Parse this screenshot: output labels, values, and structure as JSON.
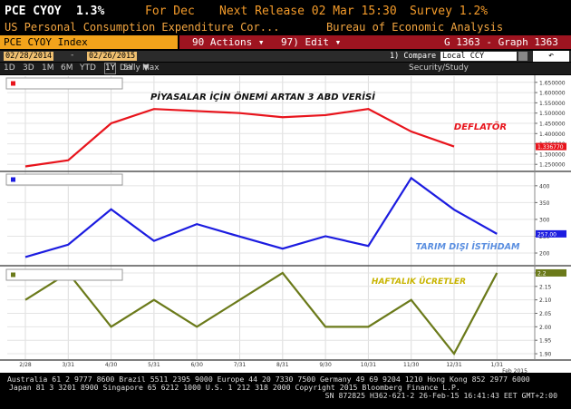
{
  "header": {
    "ticker": "PCE CYOY",
    "value": "1.3%",
    "period": "For Dec",
    "next_release": "Next Release 02 Mar 15:30",
    "survey": "Survey 1.2%",
    "description": "US Personal Consumption Expenditure Cor...",
    "source": "Bureau of Economic Analysis"
  },
  "toolbar": {
    "security": "PCE CYOY Index",
    "actions": "90 Actions ▾",
    "edit": "97) Edit ▾",
    "graph": "G 1363 - Graph 1363",
    "start_date": "02/28/2014",
    "end_date": "02/26/2015",
    "compare": "1) Compare",
    "currency": "Local CCY",
    "periods": [
      "1D",
      "3D",
      "1M",
      "6M",
      "YTD",
      "1Y",
      "5Y",
      "Max"
    ],
    "frequency": "Daily ▼",
    "study": "Security/Study"
  },
  "chart_data": [
    {
      "type": "line",
      "categories": [
        "2/28",
        "3/31",
        "4/30",
        "5/31",
        "6/30",
        "7/31",
        "8/31",
        "9/30",
        "10/31",
        "11/30",
        "12/31",
        "1/31"
      ],
      "series": [
        {
          "color": "#e8141c",
          "values": [
            1.24,
            1.27,
            1.45,
            1.52,
            1.51,
            1.5,
            1.48,
            1.49,
            1.52,
            1.41,
            1.33677,
            null
          ],
          "value_labels": [
            null,
            null,
            null,
            null,
            null,
            null,
            null,
            null,
            null,
            null,
            "1.336770",
            null
          ]
        }
      ],
      "ylim": [
        1.22,
        1.68
      ],
      "yticks": [
        {
          "value": 1.25,
          "label": "1.250000"
        },
        {
          "value": 1.3,
          "label": "1.300000"
        },
        {
          "value": 1.35,
          "label": "1.350000"
        },
        {
          "value": 1.4,
          "label": "1.400000"
        },
        {
          "value": 1.45,
          "label": "1.450000"
        },
        {
          "value": 1.5,
          "label": "1.500000"
        },
        {
          "value": 1.55,
          "label": "1.550000"
        },
        {
          "value": 1.6,
          "label": "1.600000"
        },
        {
          "value": 1.65,
          "label": "1.650000"
        }
      ],
      "annotations": [
        {
          "text": "PİYASALAR İÇİN ÖNEMİ ARTAN 3 ABD VERİSİ",
          "color": "#111111"
        },
        {
          "text": "DEFLATÖR",
          "color": "#e8141c"
        }
      ]
    },
    {
      "type": "line",
      "categories": [
        "2/28",
        "3/31",
        "4/30",
        "5/31",
        "6/30",
        "7/31",
        "8/31",
        "9/30",
        "10/31",
        "11/30",
        "12/31",
        "1/31"
      ],
      "series": [
        {
          "color": "#1c1ce0",
          "values": [
            188,
            225,
            330,
            236,
            286,
            249,
            213,
            250,
            221,
            423,
            329,
            257
          ],
          "value_labels": [
            null,
            null,
            null,
            null,
            null,
            null,
            null,
            null,
            null,
            null,
            null,
            "257.00"
          ]
        }
      ],
      "ylim": [
        165,
        440
      ],
      "yticks": [
        200,
        250,
        300,
        350,
        400
      ],
      "annotations": [
        {
          "text": "TARIM DIŞI İSTİHDAM",
          "color": "#5b8fe0"
        }
      ]
    },
    {
      "type": "line",
      "categories": [
        "2/28",
        "3/31",
        "4/30",
        "5/31",
        "6/30",
        "7/31",
        "8/31",
        "9/30",
        "10/31",
        "11/30",
        "12/31",
        "1/31"
      ],
      "series": [
        {
          "color": "#6b7a1a",
          "values": [
            2.1,
            2.2,
            2.0,
            2.1,
            2.0,
            2.1,
            2.2,
            2.0,
            2.0,
            2.1,
            1.9,
            2.2
          ]
        }
      ],
      "ylim": [
        1.88,
        2.22
      ],
      "yticks": [
        {
          "value": 1.9,
          "label": "1.90"
        },
        {
          "value": 1.95,
          "label": "1.95"
        },
        {
          "value": 2.0,
          "label": "2.00"
        },
        {
          "value": 2.05,
          "label": "2.05"
        },
        {
          "value": 2.1,
          "label": "2.10"
        },
        {
          "value": 2.15,
          "label": "2.15"
        },
        2.2
      ],
      "annotations": [
        {
          "text": "HAFTALIK ÜCRETLER",
          "color": "#c8b400"
        }
      ],
      "xlabel": "Feb 2015"
    }
  ],
  "footer": {
    "lines": [
      "Australia 61 2 9777 8600 Brazil 5511 2395 9000 Europe 44 20 7330 7500 Germany 49 69 9204 1210 Hong Kong 852 2977 6000",
      "Japan 81 3 3201 8900        Singapore 65 6212 1000        U.S. 1 212 318 2000        Copyright 2015 Bloomberg Finance L.P.",
      "SN 872825 H362-621-2 26-Feb-15 16:41:43 EET  GMT+2:00"
    ]
  }
}
